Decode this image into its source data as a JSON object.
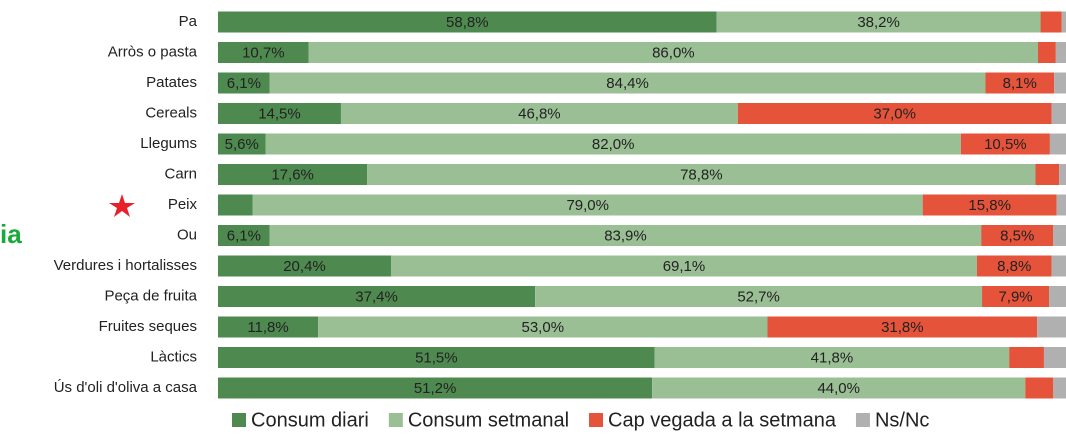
{
  "chart_data": {
    "type": "bar",
    "orientation": "horizontal",
    "stacked": true,
    "annotation": "ia",
    "categories": [
      "Pa",
      "Arròs o pasta",
      "Patates",
      "Cereals",
      "Llegums",
      "Carn",
      "Peix",
      "Ou",
      "Verdures i hortalisses",
      "Peça de fruita",
      "Fruites seques",
      "Làctics",
      "Ús d'oli d'oliva a casa"
    ],
    "xlim": [
      0,
      100
    ],
    "series": [
      {
        "name": "Consum diari",
        "color": "#4e8a4f",
        "values": [
          58.8,
          10.7,
          6.1,
          14.5,
          5.6,
          17.6,
          4.1,
          6.1,
          20.4,
          37.4,
          11.8,
          51.5,
          51.2
        ],
        "value_labels": [
          "58,8%",
          "10,7%",
          "6,1%",
          "14,5%",
          "5,6%",
          "17,6%",
          null,
          "6,1%",
          "20,4%",
          "37,4%",
          "11,8%",
          "51,5%",
          "51,2%"
        ]
      },
      {
        "name": "Consum setmanal",
        "color": "#9bbf95",
        "values": [
          38.2,
          86.0,
          84.4,
          46.8,
          82.0,
          78.8,
          79.0,
          83.9,
          69.1,
          52.7,
          53.0,
          41.8,
          44.0
        ],
        "value_labels": [
          "38,2%",
          "86,0%",
          "84,4%",
          "46,8%",
          "82,0%",
          "78,8%",
          "79,0%",
          "83,9%",
          "69,1%",
          "52,7%",
          "53,0%",
          "41,8%",
          "44,0%"
        ]
      },
      {
        "name": "Cap vegada a la setmana",
        "color": "#e5533a",
        "values": [
          2.5,
          2.1,
          8.1,
          37.0,
          10.5,
          2.8,
          15.8,
          8.5,
          8.8,
          7.9,
          31.8,
          4.1,
          3.3
        ],
        "value_labels": [
          null,
          null,
          "8,1%",
          "37,0%",
          "10,5%",
          null,
          "15,8%",
          "8,5%",
          "8,8%",
          "7,9%",
          "31,8%",
          null,
          null
        ]
      },
      {
        "name": "Ns/Nc",
        "color": "#b0b0b0",
        "values": [
          0.5,
          1.2,
          1.4,
          1.7,
          1.9,
          0.8,
          1.1,
          1.5,
          1.7,
          2.0,
          3.4,
          2.6,
          1.5
        ]
      }
    ]
  }
}
